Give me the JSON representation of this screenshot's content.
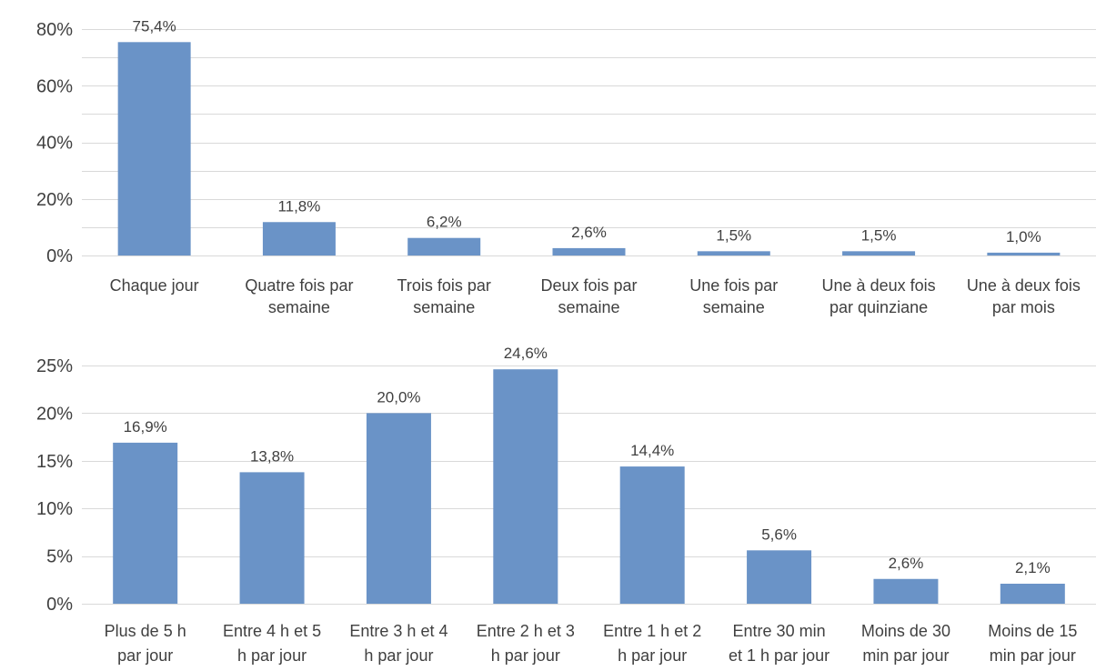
{
  "chart_data": [
    {
      "type": "bar",
      "title": "",
      "xlabel": "",
      "ylabel": "",
      "ylim": [
        0,
        0.8
      ],
      "yticks": [
        "0%",
        "20%",
        "40%",
        "60%",
        "80%"
      ],
      "grid": true,
      "color": "#6a93c7",
      "categories": [
        [
          "Chaque jour"
        ],
        [
          "Quatre fois par",
          "semaine"
        ],
        [
          "Trois fois par",
          "semaine"
        ],
        [
          "Deux fois par",
          "semaine"
        ],
        [
          "Une fois par",
          "semaine"
        ],
        [
          "Une à deux fois",
          "par quinziane"
        ],
        [
          "Une à deux fois",
          "par mois"
        ]
      ],
      "values": [
        0.754,
        0.118,
        0.062,
        0.026,
        0.015,
        0.015,
        0.01
      ],
      "data_labels": [
        "75,4%",
        "11,8%",
        "6,2%",
        "2,6%",
        "1,5%",
        "1,5%",
        "1,0%"
      ]
    },
    {
      "type": "bar",
      "title": "",
      "xlabel": "",
      "ylabel": "",
      "ylim": [
        0,
        0.25
      ],
      "yticks": [
        "0%",
        "5%",
        "10%",
        "15%",
        "20%",
        "25%"
      ],
      "grid": true,
      "color": "#6a93c7",
      "categories": [
        [
          "Plus de 5 h",
          "par jour"
        ],
        [
          "Entre 4 h et 5",
          "h par jour"
        ],
        [
          "Entre 3 h et 4",
          "h par jour"
        ],
        [
          "Entre 2 h et 3",
          "h par jour"
        ],
        [
          "Entre 1 h et 2",
          "h par jour"
        ],
        [
          "Entre 30 min",
          "et 1 h par jour"
        ],
        [
          "Moins de 30",
          "min par jour"
        ],
        [
          "Moins de 15",
          "min par jour"
        ]
      ],
      "values": [
        0.169,
        0.138,
        0.2,
        0.246,
        0.144,
        0.056,
        0.026,
        0.021
      ],
      "data_labels": [
        "16,9%",
        "13,8%",
        "20,0%",
        "24,6%",
        "14,4%",
        "5,6%",
        "2,6%",
        "2,1%"
      ]
    }
  ]
}
